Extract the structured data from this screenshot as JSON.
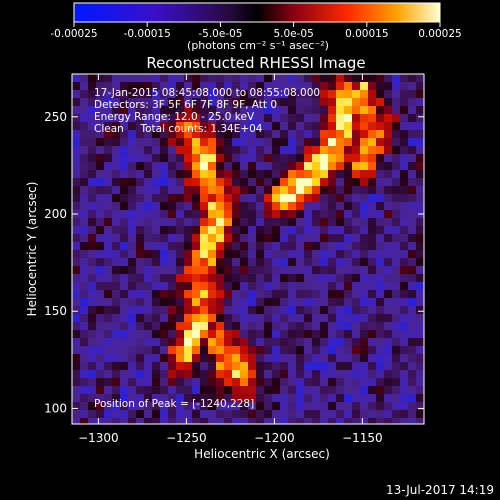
{
  "colorbar": {
    "ticks": [
      "-0.00025",
      "-0.00015",
      "-5.0e-05",
      "5.0e-05",
      "0.00015",
      "0.00025"
    ],
    "tick_values": [
      -0.00025,
      -0.00015,
      -5e-05,
      5e-05,
      0.00015,
      0.00025
    ],
    "range": [
      -0.00025,
      0.00025
    ],
    "units_label": "(photons cm⁻² s⁻¹ asec⁻²)"
  },
  "chart_data": {
    "type": "heatmap",
    "title": "Reconstructed RHESSI Image",
    "xlabel": "Heliocentric X (arcsec)",
    "ylabel": "Heliocentric Y (arcsec)",
    "xlim": [
      -1315,
      -1115
    ],
    "ylim": [
      92,
      272
    ],
    "xticks": [
      -1300,
      -1250,
      -1200,
      -1150
    ],
    "yticks": [
      100,
      150,
      200,
      250
    ],
    "annotations": [
      "17-Jan-2015 08:45:08.000 to 08:55:08.000",
      "Detectors: 3F 5F 6F 7F 8F 9F, Att 0",
      "Energy Range: 12.0 - 25.0 keV",
      "Clean     Total counts: 1.34E+04"
    ],
    "peak_label": "Position of Peak = [-1240,228]",
    "peak": [
      -1240,
      228
    ],
    "bright_ridges": [
      {
        "x": [
          -1247,
          -1240,
          -1232,
          -1238,
          -1243,
          -1250
        ],
        "y": [
          240,
          228,
          200,
          175,
          150,
          130
        ]
      },
      {
        "x": [
          -1232,
          -1228,
          -1222,
          -1218
        ],
        "y": [
          135,
          128,
          122,
          116
        ]
      },
      {
        "x": [
          -1195,
          -1180,
          -1168,
          -1160,
          -1158,
          -1162
        ],
        "y": [
          210,
          218,
          230,
          245,
          255,
          262
        ]
      },
      {
        "x": [
          -1150,
          -1145,
          -1150
        ],
        "y": [
          260,
          245,
          230
        ]
      }
    ]
  },
  "footer": {
    "timestamp": "13-Jul-2017 14:19"
  }
}
